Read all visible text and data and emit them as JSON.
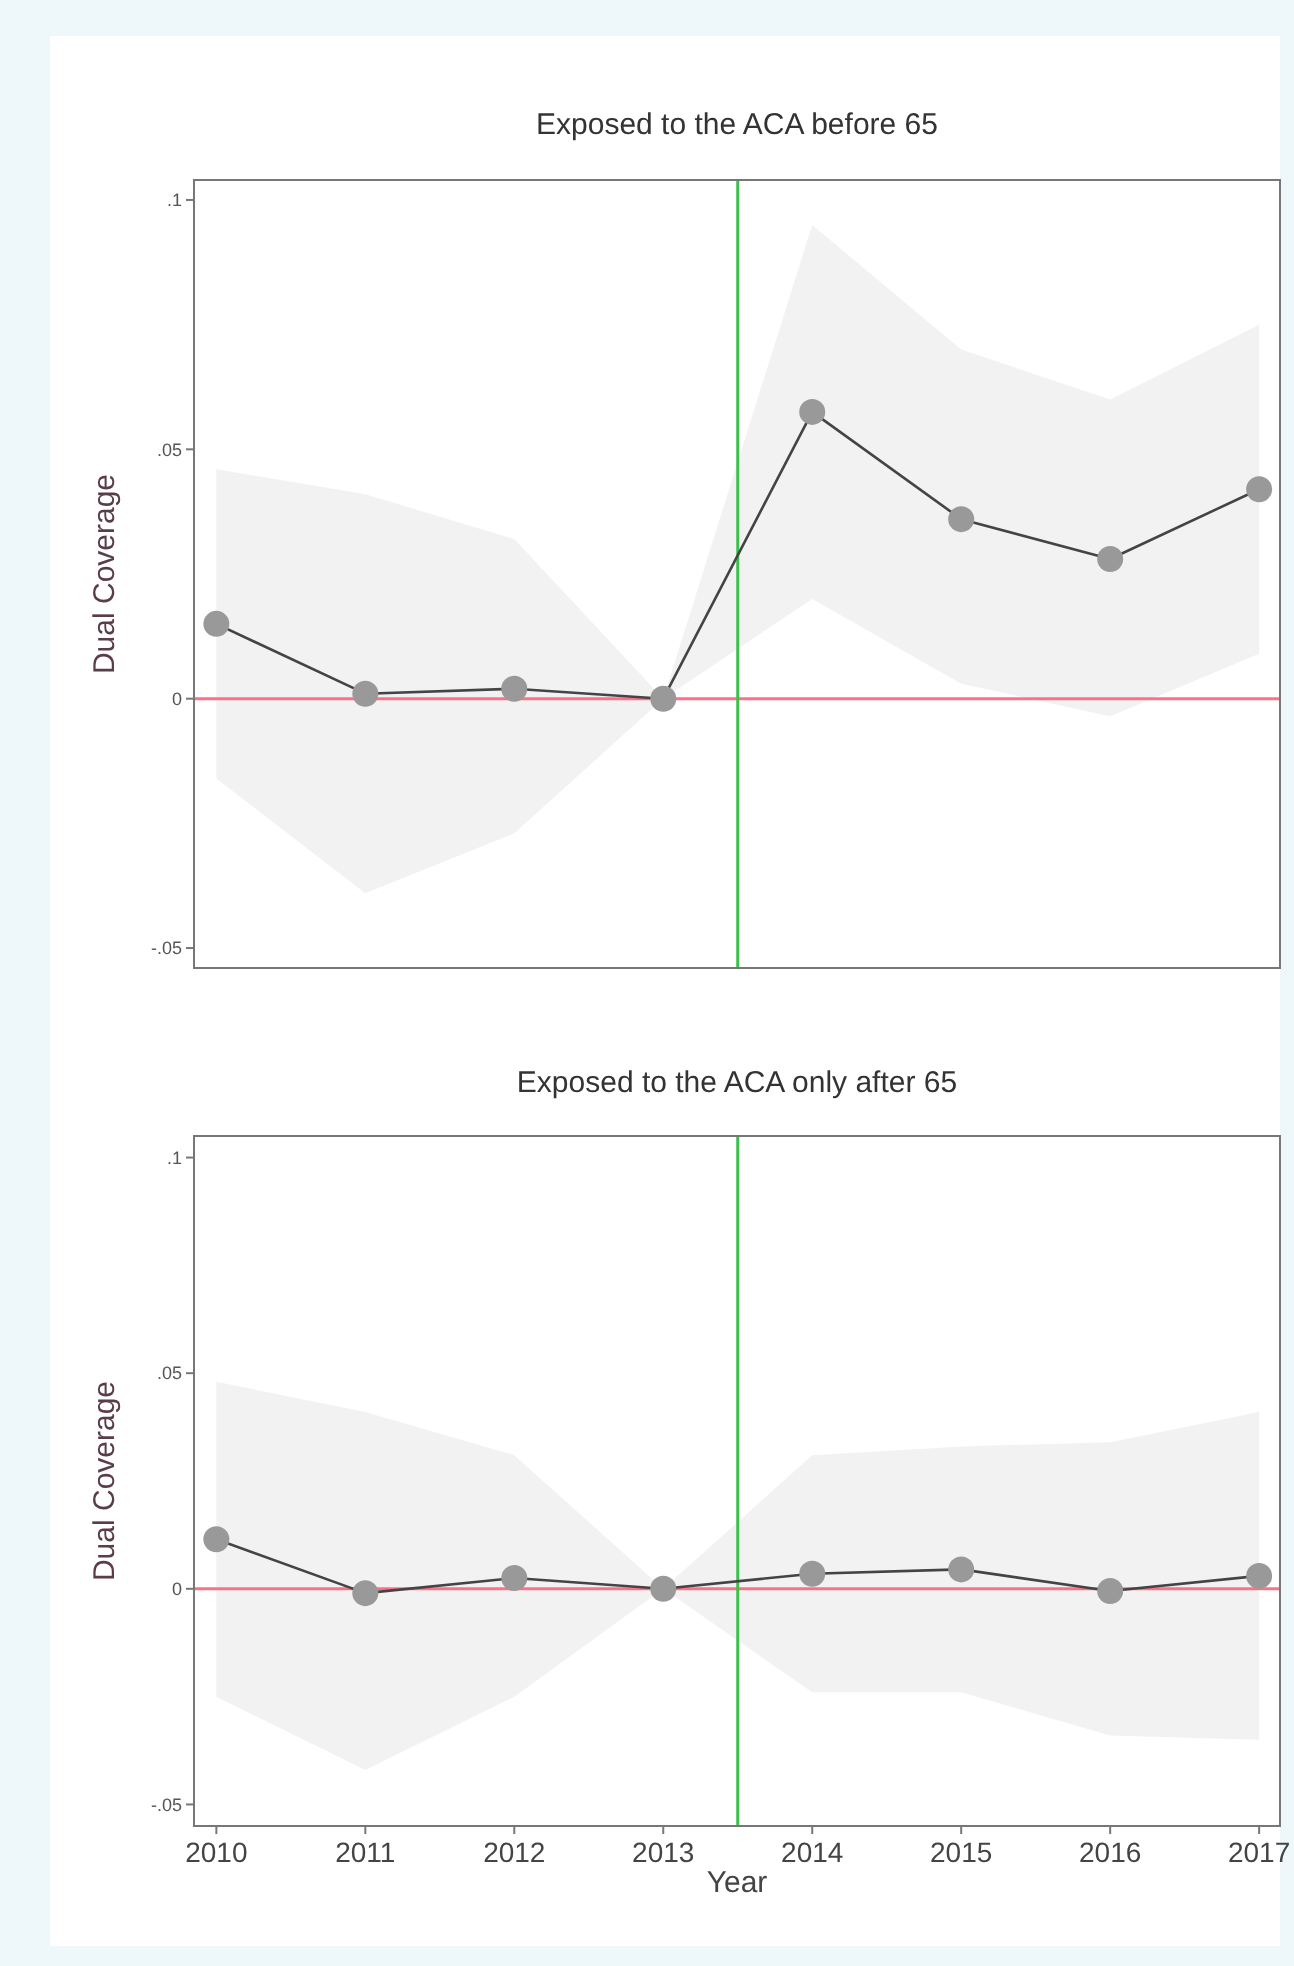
{
  "chart_data": [
    {
      "type": "line",
      "title": "Exposed to the ACA before 65",
      "ylabel": "Dual Coverage",
      "x": [
        2010,
        2011,
        2012,
        2013,
        2014,
        2015,
        2016,
        2017
      ],
      "xlim": [
        2009.85,
        2017.14
      ],
      "ylim": [
        -0.054,
        0.104
      ],
      "yticks": [
        {
          "value": -0.05,
          "label": "-.05"
        },
        {
          "value": 0,
          "label": "0"
        },
        {
          "value": 0.05,
          "label": ".05"
        },
        {
          "value": 0.1,
          "label": ".1"
        }
      ],
      "tick_labels": "y",
      "marker": "circle",
      "series": [
        {
          "color": "#999999",
          "values": [
            0.015,
            0.001,
            0.002,
            0,
            0.0575,
            0.036,
            0.028,
            0.042
          ],
          "lower": [
            -0.016,
            -0.039,
            -0.027,
            0,
            0.02,
            0.003,
            -0.0035,
            0.009
          ],
          "upper": [
            0.046,
            0.041,
            0.032,
            0,
            0.095,
            0.07,
            0.06,
            0.075
          ]
        }
      ],
      "ref_lines": [
        {
          "axis": "y",
          "value": 0,
          "color": "#ff6f8a"
        },
        {
          "axis": "x",
          "value": 2013.5,
          "color": "#3cc04c"
        }
      ]
    },
    {
      "type": "line",
      "title": "Exposed to the ACA only after 65",
      "xlabel": "Year",
      "ylabel": "Dual Coverage",
      "x": [
        2010,
        2011,
        2012,
        2013,
        2014,
        2015,
        2016,
        2017
      ],
      "xlim": [
        2009.85,
        2017.14
      ],
      "ylim": [
        -0.055,
        0.105
      ],
      "xticks": [
        2010,
        2011,
        2012,
        2013,
        2014,
        2015,
        2016,
        2017
      ],
      "yticks": [
        {
          "value": -0.05,
          "label": "-.05"
        },
        {
          "value": 0,
          "label": "0"
        },
        {
          "value": 0.05,
          "label": ".05"
        },
        {
          "value": 0.1,
          "label": ".1"
        }
      ],
      "marker": "circle",
      "series": [
        {
          "color": "#999999",
          "values": [
            0.0115,
            -0.001,
            0.0025,
            0,
            0.0035,
            0.0045,
            -0.0005,
            0.003
          ],
          "lower": [
            -0.025,
            -0.042,
            -0.025,
            0,
            -0.024,
            -0.024,
            -0.034,
            -0.035
          ],
          "upper": [
            0.048,
            0.041,
            0.031,
            0,
            0.031,
            0.033,
            0.034,
            0.041
          ]
        }
      ],
      "ref_lines": [
        {
          "axis": "y",
          "value": 0,
          "color": "#ff6f8a"
        },
        {
          "axis": "x",
          "value": 2013.5,
          "color": "#3cc04c"
        }
      ]
    }
  ]
}
